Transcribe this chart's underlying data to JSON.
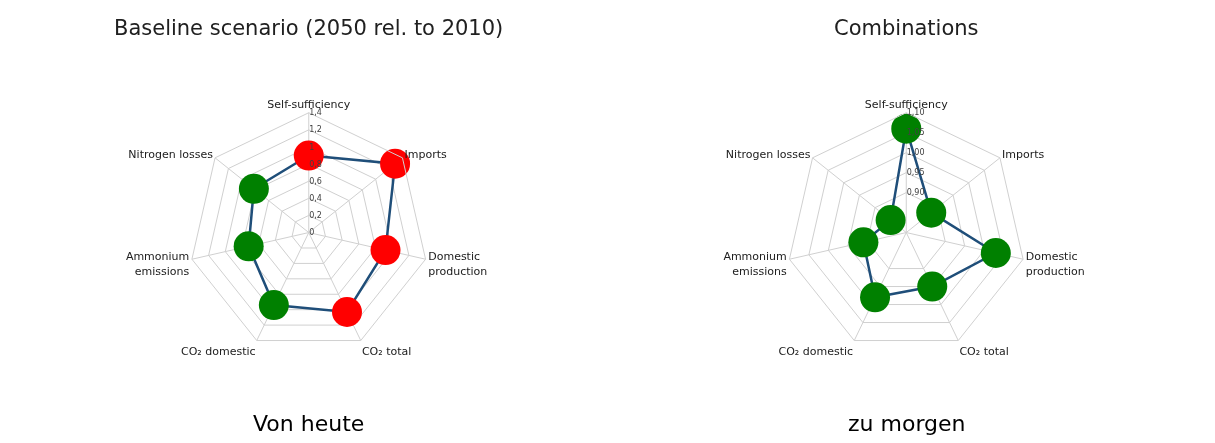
{
  "chart_data": [
    {
      "type": "radar",
      "title": "Baseline scenario (2050 rel. to 2010)",
      "categories": [
        "Self-sufficiency",
        "Imports",
        "Domestic production",
        "CO₂ total",
        "CO₂ domestic",
        "Ammonium emissions",
        "Nitrogen losses"
      ],
      "series": [
        {
          "color": "#1f4e79",
          "values": [
            0.9,
            1.29,
            0.92,
            1.03,
            0.94,
            0.72,
            0.82
          ],
          "colors": [
            "#ff0000",
            "#ff0000",
            "#ff0000",
            "#ff0000",
            "#008000",
            "#008000",
            "#008000"
          ]
        }
      ],
      "ylim": [
        0,
        1.4
      ],
      "yticks": [
        0,
        {
          "value": 0.2,
          "label": "0,2"
        },
        {
          "value": 0.4,
          "label": "0,4"
        },
        {
          "value": 0.6,
          "label": "0,6"
        },
        {
          "value": 0.8,
          "label": "0,8"
        },
        1,
        {
          "value": 1.2,
          "label": "1,2"
        },
        {
          "value": 1.4,
          "label": "1,4"
        }
      ],
      "grid": true,
      "marker": "circle",
      "line_style": "solid",
      "annotations": [
        "Von heute"
      ]
    },
    {
      "type": "radar",
      "title": "Combinations",
      "categories": [
        "Self-sufficiency",
        "Imports",
        "Domestic production",
        "CO₂ total",
        "CO₂ domestic",
        "Ammonium emissions",
        "Nitrogen losses"
      ],
      "series": [
        {
          "color": "#1f4e79",
          "values": [
            1.06,
            0.88,
            1.03,
            0.95,
            0.98,
            0.91,
            0.85
          ],
          "colors": [
            "#008000",
            "#008000",
            "#008000",
            "#008000",
            "#008000",
            "#008000",
            "#008000"
          ]
        }
      ],
      "ylim": [
        0.8,
        1.1
      ],
      "yticks": [
        {
          "value": 0.9,
          "label": "0,90"
        },
        {
          "value": 0.95,
          "label": "0,95"
        },
        {
          "value": 1.0,
          "label": "1,00"
        },
        {
          "value": 1.05,
          "label": "1,05"
        },
        {
          "value": 1.1,
          "label": "1,10"
        }
      ],
      "grid": true,
      "marker": "circle",
      "line_style": "solid",
      "annotations": [
        "zu morgen"
      ]
    }
  ]
}
